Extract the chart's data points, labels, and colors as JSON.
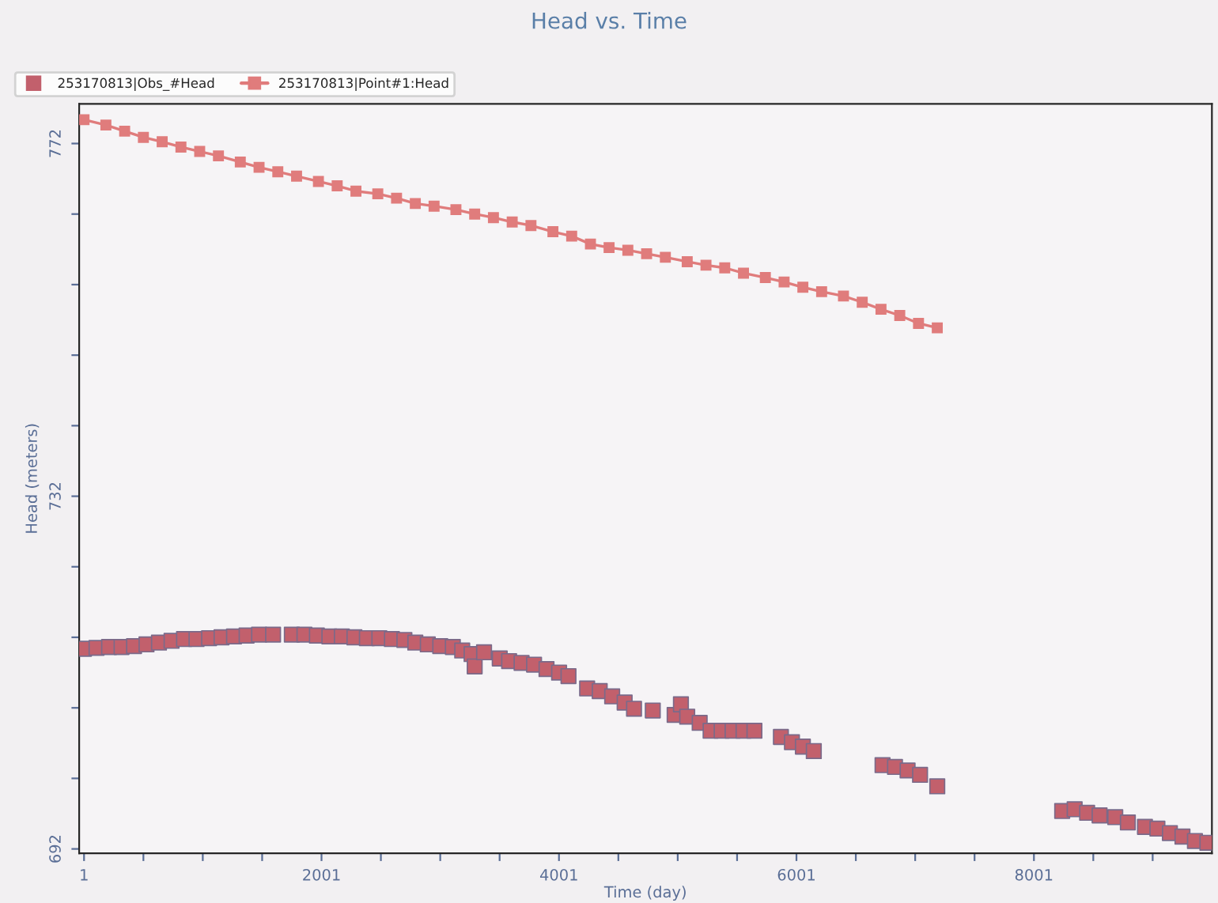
{
  "chart_data": {
    "type": "scatter",
    "title": "Head vs. Time",
    "xlabel": "Time (day)",
    "ylabel": "Head (meters)",
    "xlim": [
      -40,
      9500
    ],
    "ylim": [
      691.5,
      776.5
    ],
    "xticks": [
      1,
      {
        "value": 501,
        "label": null
      },
      {
        "value": 1001,
        "label": null
      },
      {
        "value": 1501,
        "label": null
      },
      2001,
      {
        "value": 2501,
        "label": null
      },
      {
        "value": 3001,
        "label": null
      },
      {
        "value": 3501,
        "label": null
      },
      4001,
      {
        "value": 4501,
        "label": null
      },
      {
        "value": 5001,
        "label": null
      },
      {
        "value": 5501,
        "label": null
      },
      6001,
      {
        "value": 6501,
        "label": null
      },
      {
        "value": 7001,
        "label": null
      },
      {
        "value": 7501,
        "label": null
      },
      8001,
      {
        "value": 8501,
        "label": null
      },
      {
        "value": 9001,
        "label": null
      }
    ],
    "yticks": [
      692,
      {
        "value": 700,
        "label": null
      },
      {
        "value": 708,
        "label": null
      },
      {
        "value": 716,
        "label": null
      },
      {
        "value": 724,
        "label": null
      },
      732,
      {
        "value": 740,
        "label": null
      },
      {
        "value": 748,
        "label": null
      },
      {
        "value": 756,
        "label": null
      },
      {
        "value": 764,
        "label": null
      },
      772
    ],
    "grid": false,
    "legend": "top",
    "series": [
      {
        "name": "253170813|Obs_#Head",
        "marker": "square",
        "color": "#c2606c",
        "x": [
          1,
          106,
          212,
          317,
          422,
          527,
          632,
          738,
          843,
          948,
          1054,
          1159,
          1264,
          1370,
          1475,
          1593,
          1751,
          1857,
          1962,
          2067,
          2172,
          2278,
          2383,
          2488,
          2594,
          2699,
          2791,
          2896,
          3001,
          3107,
          3186,
          3265,
          3291,
          3370,
          3502,
          3581,
          3686,
          3791,
          3896,
          4002,
          4081,
          4238,
          4344,
          4449,
          4554,
          4633,
          4791,
          4975,
          5028,
          5081,
          5186,
          5278,
          5371,
          5463,
          5555,
          5647,
          5870,
          5963,
          6055,
          6147,
          6726,
          6831,
          6937,
          7042,
          7187,
          8239,
          8344,
          8449,
          8554,
          8686,
          8792,
          8936,
          9041,
          9146,
          9252,
          9357,
          9462
        ],
        "values": [
          714.7,
          714.8,
          714.9,
          714.9,
          715.0,
          715.2,
          715.4,
          715.6,
          715.8,
          715.8,
          715.9,
          716.0,
          716.1,
          716.2,
          716.3,
          716.3,
          716.3,
          716.3,
          716.2,
          716.1,
          716.1,
          716.0,
          715.9,
          715.9,
          715.8,
          715.7,
          715.4,
          715.2,
          715.0,
          714.9,
          714.5,
          714.1,
          712.7,
          714.3,
          713.6,
          713.3,
          713.1,
          712.9,
          712.4,
          712.0,
          711.6,
          710.2,
          709.9,
          709.3,
          708.6,
          707.9,
          707.7,
          707.2,
          708.4,
          707.0,
          706.3,
          705.4,
          705.4,
          705.4,
          705.4,
          705.4,
          704.7,
          704.1,
          703.6,
          703.1,
          701.5,
          701.3,
          700.9,
          700.4,
          699.1,
          696.3,
          696.5,
          696.1,
          695.8,
          695.6,
          695.0,
          694.5,
          694.3,
          693.8,
          693.4,
          692.9,
          692.7
        ]
      },
      {
        "name": "253170813|Point#1:Head",
        "type": "line",
        "marker": "square",
        "line_style": "solid",
        "color": "#e07c7c",
        "x": [
          1,
          185,
          343,
          501,
          659,
          817,
          975,
          1133,
          1317,
          1475,
          1633,
          1791,
          1975,
          2133,
          2291,
          2475,
          2633,
          2791,
          2949,
          3133,
          3291,
          3449,
          3607,
          3765,
          3950,
          4108,
          4266,
          4423,
          4581,
          4739,
          4897,
          5081,
          5239,
          5397,
          5555,
          5739,
          5897,
          6055,
          6213,
          6397,
          6555,
          6713,
          6871,
          7029,
          7187
        ],
        "values": [
          774.7,
          774.1,
          773.4,
          772.7,
          772.2,
          771.6,
          771.1,
          770.6,
          769.9,
          769.3,
          768.8,
          768.3,
          767.7,
          767.2,
          766.6,
          766.3,
          765.8,
          765.2,
          764.9,
          764.5,
          764.0,
          763.6,
          763.1,
          762.7,
          762.0,
          761.5,
          760.6,
          760.2,
          759.9,
          759.5,
          759.1,
          758.6,
          758.2,
          757.9,
          757.3,
          756.8,
          756.3,
          755.7,
          755.2,
          754.7,
          754.0,
          753.2,
          752.5,
          751.6,
          751.1
        ]
      }
    ]
  }
}
